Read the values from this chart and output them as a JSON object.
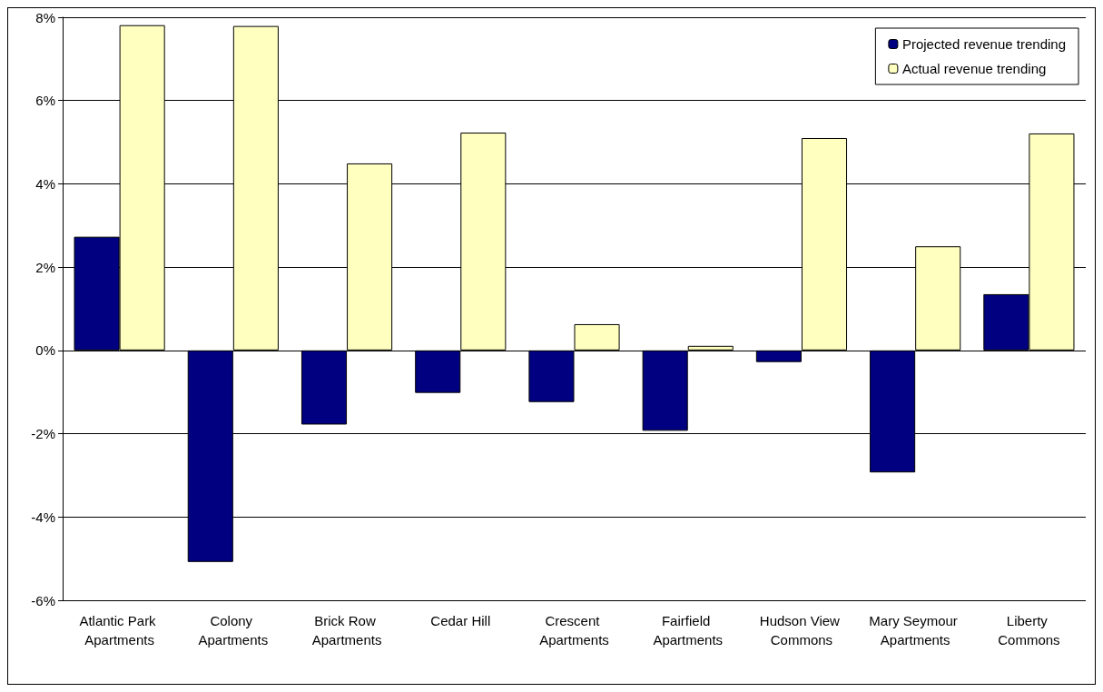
{
  "chart_data": {
    "type": "bar",
    "categories": [
      "Atlantic Park Apartments",
      "Colony Apartments",
      "Brick Row Apartments",
      "Cedar Hill",
      "Crescent Apartments",
      "Fairfield Apartments",
      "Hudson View Commons",
      "Mary Seymour Apartments",
      "Liberty Commons"
    ],
    "series": [
      {
        "name": "Projected revenue trending",
        "color": "#000080",
        "values": [
          2.73,
          -5.08,
          -1.78,
          -1.02,
          -1.24,
          -1.93,
          -0.28,
          -2.93,
          1.35
        ]
      },
      {
        "name": "Actual revenue trending",
        "color": "#ffffc0",
        "values": [
          7.81,
          7.79,
          4.49,
          5.23,
          0.63,
          0.11,
          5.1,
          2.5,
          5.21
        ]
      }
    ],
    "ylim": [
      -6,
      8
    ],
    "yticks": [
      {
        "value": -6,
        "label": "-6%"
      },
      {
        "value": -4,
        "label": "-4%"
      },
      {
        "value": -2,
        "label": "-2%"
      },
      {
        "value": 0,
        "label": "0%"
      },
      {
        "value": 2,
        "label": "2%"
      },
      {
        "value": 4,
        "label": "4%"
      },
      {
        "value": 6,
        "label": "6%"
      },
      {
        "value": 8,
        "label": "8%"
      }
    ],
    "grid": "y",
    "legend": "top right"
  }
}
